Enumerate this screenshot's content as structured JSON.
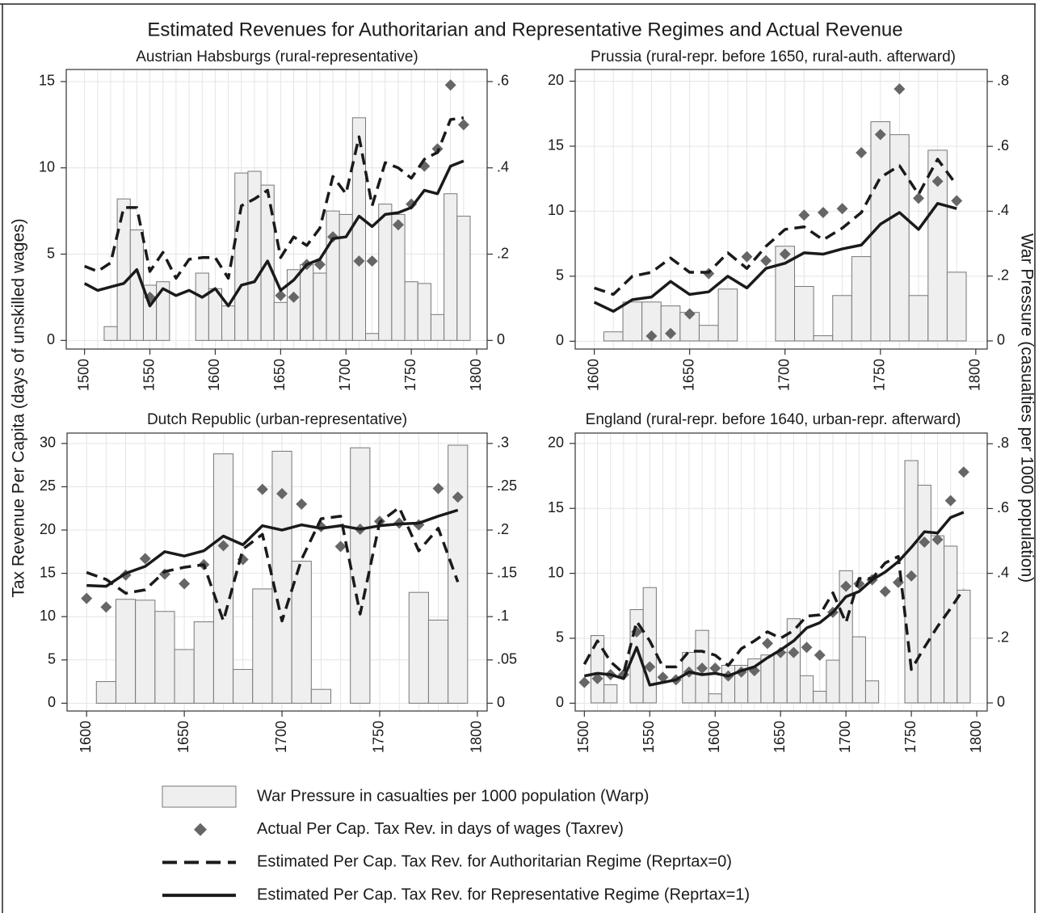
{
  "title": "Estimated Revenues for Authoritarian and Representative Regimes and Actual Revenue",
  "ylabel": "Tax Revenue Per Capita (days of unskilled wages)",
  "y2label": "War Pressure (casualties per 1000 population)",
  "chart_data": [
    {
      "type": "combo",
      "title": "Austrian Habsburgs (rural-representative)",
      "x": [
        1500,
        1510,
        1520,
        1530,
        1540,
        1550,
        1560,
        1570,
        1580,
        1590,
        1600,
        1610,
        1620,
        1630,
        1640,
        1650,
        1660,
        1670,
        1680,
        1690,
        1700,
        1710,
        1720,
        1730,
        1740,
        1750,
        1760,
        1770,
        1780,
        1790
      ],
      "xlim": [
        1486,
        1808
      ],
      "xticks": [
        1500,
        1550,
        1600,
        1650,
        1700,
        1750,
        1800
      ],
      "ylim": [
        -0.5,
        15.7
      ],
      "yticks": [
        0,
        5,
        10,
        15
      ],
      "y2lim": [
        -0.02,
        0.628
      ],
      "y2ticks": [
        0,
        {
          "value": 0.2,
          "label": ".2"
        },
        {
          "value": 0.4,
          "label": ".4"
        },
        {
          "value": 0.6,
          "label": ".6"
        }
      ],
      "grid": true,
      "series": [
        {
          "name": "War Pressure in casualties per 1000 population (Warp)",
          "kind": "bar",
          "axis": "y2",
          "color": "#efefef",
          "values": [
            null,
            null,
            0.032,
            0.328,
            0.256,
            0.128,
            0.136,
            null,
            null,
            0.156,
            0.12,
            0.08,
            0.388,
            0.392,
            0.36,
            0.088,
            0.164,
            0.176,
            0.156,
            0.3,
            0.292,
            0.516,
            0.016,
            0.316,
            0.292,
            0.136,
            0.132,
            0.06,
            0.34,
            0.288
          ]
        },
        {
          "name": "Actual Per Cap. Tax Rev. in days of wages (Taxrev)",
          "kind": "scatter",
          "color": "#666666",
          "values": [
            null,
            null,
            null,
            null,
            null,
            2.5,
            null,
            null,
            null,
            null,
            null,
            null,
            null,
            null,
            null,
            2.6,
            2.5,
            4.4,
            4.4,
            6.0,
            null,
            4.6,
            4.6,
            null,
            6.7,
            7.9,
            10.1,
            11.1,
            14.8,
            12.5
          ]
        },
        {
          "name": "Estimated Per Cap. Tax Rev. for Authoritarian Regime (Reprtax=0)",
          "kind": "line",
          "dash": true,
          "color": "#1a1a1a",
          "values": [
            4.3,
            4.0,
            4.5,
            7.7,
            7.7,
            4.0,
            5.1,
            3.6,
            4.7,
            4.8,
            4.8,
            3.6,
            7.8,
            8.2,
            8.7,
            4.8,
            6.0,
            5.5,
            6.5,
            9.5,
            8.5,
            11.8,
            7.8,
            10.3,
            10.0,
            9.4,
            10.5,
            10.9,
            12.8,
            12.9
          ]
        },
        {
          "name": "Estimated Per Cap. Tax Rev. for Representative Regime (Reprtax=1)",
          "kind": "line",
          "dash": false,
          "color": "#1a1a1a",
          "values": [
            3.3,
            2.9,
            3.1,
            3.3,
            4.1,
            2.0,
            3.0,
            2.6,
            2.9,
            2.5,
            3.0,
            2.0,
            3.2,
            3.4,
            4.6,
            2.9,
            3.5,
            4.4,
            4.7,
            5.9,
            6.0,
            7.2,
            6.6,
            7.3,
            7.4,
            7.7,
            8.7,
            8.5,
            10.1,
            10.4
          ]
        }
      ]
    },
    {
      "type": "combo",
      "title": "Prussia (rural-repr. before 1650, rural-auth. afterward)",
      "x": [
        1600,
        1610,
        1620,
        1630,
        1640,
        1650,
        1660,
        1670,
        1680,
        1690,
        1700,
        1710,
        1720,
        1730,
        1740,
        1750,
        1760,
        1770,
        1780,
        1790
      ],
      "xlim": [
        1590,
        1806
      ],
      "xticks": [
        1600,
        1650,
        1700,
        1750,
        1800
      ],
      "ylim": [
        -0.6,
        20.9
      ],
      "yticks": [
        0,
        5,
        10,
        15,
        20
      ],
      "y2lim": [
        -0.025,
        0.837
      ],
      "y2ticks": [
        0,
        {
          "value": 0.2,
          "label": ".2"
        },
        {
          "value": 0.4,
          "label": ".4"
        },
        {
          "value": 0.6,
          "label": ".6"
        },
        {
          "value": 0.8,
          "label": ".8"
        }
      ],
      "grid": true,
      "series": [
        {
          "kind": "bar",
          "axis": "y2",
          "color": "#efefef",
          "values": [
            null,
            0.028,
            0.12,
            0.12,
            0.108,
            0.088,
            0.048,
            0.16,
            null,
            null,
            0.292,
            0.168,
            0.016,
            0.14,
            0.26,
            0.676,
            0.636,
            0.14,
            0.588,
            0.212
          ]
        },
        {
          "kind": "scatter",
          "color": "#666666",
          "values": [
            null,
            null,
            null,
            0.4,
            0.6,
            2.1,
            5.2,
            null,
            6.5,
            6.2,
            6.7,
            9.7,
            9.9,
            10.2,
            14.5,
            15.9,
            19.4,
            11.0,
            12.3,
            10.8
          ]
        },
        {
          "kind": "line",
          "dash": true,
          "color": "#1a1a1a",
          "values": [
            4.1,
            3.6,
            5.0,
            5.3,
            6.4,
            5.3,
            5.3,
            6.8,
            5.6,
            7.3,
            8.6,
            8.8,
            7.8,
            8.7,
            9.9,
            12.6,
            13.5,
            11.3,
            14.0,
            12.0
          ]
        },
        {
          "kind": "line",
          "dash": false,
          "color": "#1a1a1a",
          "values": [
            3.0,
            2.3,
            3.2,
            3.4,
            4.6,
            3.6,
            3.8,
            5.0,
            4.1,
            5.6,
            6.0,
            6.8,
            6.7,
            7.1,
            7.4,
            9.0,
            9.9,
            8.6,
            10.6,
            10.2
          ]
        }
      ]
    },
    {
      "type": "combo",
      "title": "Dutch Republic (urban-representative)",
      "x": [
        1600,
        1610,
        1620,
        1630,
        1640,
        1650,
        1660,
        1670,
        1680,
        1690,
        1700,
        1710,
        1720,
        1730,
        1740,
        1750,
        1760,
        1770,
        1780,
        1790
      ],
      "xlim": [
        1590,
        1805
      ],
      "xticks": [
        1600,
        1650,
        1700,
        1750,
        1800
      ],
      "ylim": [
        -0.9,
        31.2
      ],
      "yticks": [
        0,
        5,
        10,
        15,
        20,
        25,
        30
      ],
      "y2lim": [
        -0.009,
        0.312
      ],
      "y2ticks": [
        0,
        {
          "value": 0.05,
          "label": ".05"
        },
        {
          "value": 0.1,
          "label": ".1"
        },
        {
          "value": 0.15,
          "label": ".15"
        },
        {
          "value": 0.2,
          "label": ".2"
        },
        {
          "value": 0.25,
          "label": ".25"
        },
        {
          "value": 0.3,
          "label": ".3"
        }
      ],
      "grid": true,
      "series": [
        {
          "kind": "bar",
          "axis": "y2",
          "color": "#efefef",
          "values": [
            null,
            0.025,
            0.12,
            0.119,
            0.106,
            0.062,
            0.094,
            0.288,
            0.039,
            0.132,
            0.291,
            0.164,
            0.016,
            null,
            0.295,
            null,
            null,
            0.128,
            0.096,
            0.298
          ]
        },
        {
          "kind": "scatter",
          "color": "#666666",
          "values": [
            12.1,
            11.1,
            14.8,
            16.7,
            14.9,
            13.8,
            16.0,
            18.2,
            16.6,
            24.7,
            24.2,
            23.0,
            20.4,
            18.1,
            20.1,
            21.0,
            20.8,
            20.6,
            24.8,
            23.8
          ]
        },
        {
          "kind": "line",
          "dash": true,
          "color": "#1a1a1a",
          "values": [
            15.1,
            14.3,
            12.7,
            13.1,
            15.2,
            15.7,
            16.0,
            9.5,
            17.8,
            19.5,
            9.5,
            16.6,
            21.3,
            21.6,
            10.3,
            20.9,
            22.6,
            17.6,
            20.2,
            14.0
          ]
        },
        {
          "kind": "line",
          "dash": false,
          "color": "#1a1a1a",
          "values": [
            13.6,
            13.5,
            15.0,
            15.8,
            17.5,
            17.0,
            17.6,
            19.3,
            18.3,
            20.5,
            20.0,
            20.6,
            20.2,
            20.5,
            20.1,
            20.5,
            20.7,
            20.8,
            21.6,
            22.3
          ]
        }
      ]
    },
    {
      "type": "combo",
      "title": "England (rural-repr. before 1640, urban-repr. afterward)",
      "x": [
        1500,
        1510,
        1520,
        1530,
        1540,
        1550,
        1560,
        1570,
        1580,
        1590,
        1600,
        1610,
        1620,
        1630,
        1640,
        1650,
        1660,
        1670,
        1680,
        1690,
        1700,
        1710,
        1720,
        1730,
        1740,
        1750,
        1760,
        1770,
        1780,
        1790
      ],
      "xlim": [
        1493,
        1808
      ],
      "xticks": [
        1500,
        1550,
        1600,
        1650,
        1700,
        1750,
        1800
      ],
      "ylim": [
        -0.6,
        20.8
      ],
      "yticks": [
        0,
        5,
        10,
        15,
        20
      ],
      "y2lim": [
        -0.025,
        0.833
      ],
      "y2ticks": [
        0,
        {
          "value": 0.2,
          "label": ".2"
        },
        {
          "value": 0.4,
          "label": ".4"
        },
        {
          "value": 0.6,
          "label": ".6"
        },
        {
          "value": 0.8,
          "label": ".8"
        }
      ],
      "grid": true,
      "series": [
        {
          "kind": "bar",
          "axis": "y2",
          "color": "#efefef",
          "values": [
            null,
            0.208,
            0.056,
            null,
            0.288,
            0.356,
            null,
            null,
            0.156,
            0.224,
            0.028,
            0.116,
            0.116,
            0.136,
            0.148,
            0.156,
            0.26,
            0.084,
            0.036,
            0.132,
            0.408,
            0.204,
            0.068,
            null,
            null,
            0.748,
            0.672,
            0.516,
            0.484,
            0.348
          ]
        },
        {
          "kind": "scatter",
          "color": "#666666",
          "values": [
            1.6,
            1.9,
            2.2,
            2.2,
            5.5,
            2.8,
            2.0,
            1.8,
            2.4,
            2.7,
            2.7,
            2.1,
            2.4,
            2.5,
            4.6,
            3.9,
            3.9,
            4.3,
            3.7,
            7.0,
            9.0,
            9.2,
            9.5,
            8.6,
            9.3,
            9.8,
            12.4,
            12.6,
            15.6,
            17.8
          ]
        },
        {
          "kind": "line",
          "dash": true,
          "color": "#1a1a1a",
          "values": [
            3.0,
            4.8,
            3.2,
            2.3,
            6.3,
            4.8,
            2.8,
            2.8,
            4.0,
            4.0,
            3.7,
            2.9,
            4.2,
            4.8,
            5.5,
            5.0,
            5.6,
            6.7,
            6.8,
            8.5,
            6.2,
            9.6,
            9.6,
            10.8,
            11.3,
            2.6,
            4.3,
            5.9,
            7.3,
            8.8
          ]
        },
        {
          "kind": "line",
          "dash": false,
          "color": "#1a1a1a",
          "values": [
            2.1,
            2.3,
            2.2,
            1.9,
            4.3,
            1.4,
            1.6,
            1.8,
            2.4,
            2.2,
            2.3,
            2.1,
            2.5,
            2.8,
            3.5,
            4.1,
            4.8,
            5.8,
            6.2,
            7.0,
            8.2,
            8.6,
            9.5,
            10.1,
            10.9,
            12.0,
            13.2,
            13.1,
            14.3,
            14.7
          ]
        }
      ]
    }
  ]
}
